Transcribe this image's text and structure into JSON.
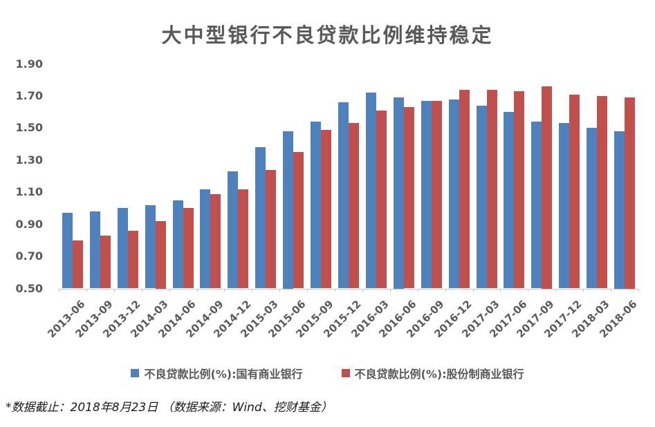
{
  "title": "大中型银行不良贷款比例维持稳定",
  "footnote": "*数据截止：2018年8月23日 （数据来源：Wind、挖财基金）",
  "legend": {
    "items": [
      {
        "label": "不良贷款比例(%):国有商业银行",
        "color": "#4F81BD"
      },
      {
        "label": "不良贷款比例(%):股份制商业银行",
        "color": "#C0504D"
      }
    ]
  },
  "colors": {
    "series_blue": "#4F81BD",
    "series_red": "#C0504D",
    "title_text": "#595959",
    "axis_text": "#595959",
    "axis_line": "#C6C6C6",
    "background": "#FFFFFF"
  },
  "chart_data": {
    "type": "bar",
    "title": "大中型银行不良贷款比例维持稳定",
    "xlabel": "",
    "ylabel": "",
    "ylim": [
      0.5,
      1.9
    ],
    "yticks": [
      1.9,
      1.7,
      1.5,
      1.3,
      1.1,
      0.9,
      0.7,
      0.5
    ],
    "grid": false,
    "legend_position": "bottom",
    "categories": [
      "2013-06",
      "2013-09",
      "2013-12",
      "2014-03",
      "2014-06",
      "2014-09",
      "2014-12",
      "2015-03",
      "2015-06",
      "2015-09",
      "2015-12",
      "2016-03",
      "2016-06",
      "2016-09",
      "2016-12",
      "2017-03",
      "2017-06",
      "2017-09",
      "2017-12",
      "2018-03",
      "2018-06"
    ],
    "series": [
      {
        "name": "不良贷款比例(%):国有商业银行",
        "color": "#4F81BD",
        "values": [
          0.97,
          0.98,
          1.0,
          1.02,
          1.05,
          1.12,
          1.23,
          1.38,
          1.48,
          1.54,
          1.66,
          1.72,
          1.69,
          1.67,
          1.68,
          1.64,
          1.6,
          1.54,
          1.53,
          1.5,
          1.48
        ]
      },
      {
        "name": "不良贷款比例(%):股份制商业银行",
        "color": "#C0504D",
        "values": [
          0.8,
          0.83,
          0.86,
          0.92,
          1.0,
          1.09,
          1.12,
          1.24,
          1.35,
          1.49,
          1.53,
          1.61,
          1.63,
          1.67,
          1.74,
          1.74,
          1.73,
          1.76,
          1.71,
          1.7,
          1.69
        ]
      }
    ]
  }
}
